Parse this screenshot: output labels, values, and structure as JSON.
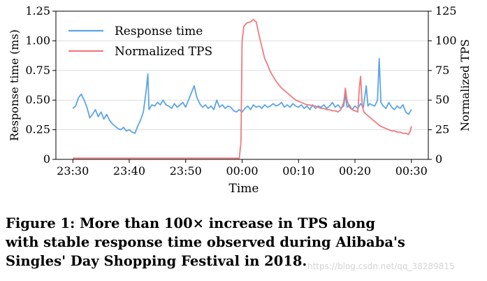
{
  "chart_data": {
    "type": "line",
    "xlabel": "Time",
    "ylabel_left": "Response time (ms)",
    "ylabel_right": "Normalized TPS",
    "x_tick_labels": [
      "23:30",
      "23:40",
      "23:50",
      "00:00",
      "00:10",
      "00:20",
      "00:30"
    ],
    "x_tick_minutes": [
      -30,
      -20,
      -10,
      0,
      10,
      20,
      30
    ],
    "xlim": [
      -33,
      33
    ],
    "ylim_left": [
      0,
      1.25
    ],
    "ylim_right": [
      0,
      125
    ],
    "y_left_ticks": [
      "0",
      "0.25",
      "0.50",
      "0.75",
      "1.00",
      "1.25"
    ],
    "y_right_ticks": [
      "0",
      "25",
      "50",
      "75",
      "100",
      "125"
    ],
    "grid": true,
    "legend_position": "upper-left",
    "series": [
      {
        "name": "Response time",
        "axis": "left",
        "color": "#5aa5e8",
        "points": [
          [
            -30,
            0.43
          ],
          [
            -29.5,
            0.45
          ],
          [
            -29,
            0.52
          ],
          [
            -28.5,
            0.55
          ],
          [
            -28,
            0.5
          ],
          [
            -27.5,
            0.44
          ],
          [
            -27,
            0.35
          ],
          [
            -26.5,
            0.38
          ],
          [
            -26,
            0.42
          ],
          [
            -25.5,
            0.36
          ],
          [
            -25,
            0.4
          ],
          [
            -24.5,
            0.34
          ],
          [
            -24,
            0.38
          ],
          [
            -23.5,
            0.33
          ],
          [
            -23,
            0.3
          ],
          [
            -22.5,
            0.28
          ],
          [
            -22,
            0.26
          ],
          [
            -21.5,
            0.25
          ],
          [
            -21,
            0.27
          ],
          [
            -20.5,
            0.24
          ],
          [
            -20,
            0.25
          ],
          [
            -19.5,
            0.23
          ],
          [
            -19,
            0.22
          ],
          [
            -18.5,
            0.28
          ],
          [
            -18,
            0.33
          ],
          [
            -17.5,
            0.4
          ],
          [
            -17,
            0.58
          ],
          [
            -16.7,
            0.72
          ],
          [
            -16.5,
            0.42
          ],
          [
            -16,
            0.46
          ],
          [
            -15.5,
            0.45
          ],
          [
            -15,
            0.48
          ],
          [
            -14.5,
            0.46
          ],
          [
            -14,
            0.5
          ],
          [
            -13.5,
            0.46
          ],
          [
            -13,
            0.45
          ],
          [
            -12.5,
            0.43
          ],
          [
            -12,
            0.47
          ],
          [
            -11.5,
            0.44
          ],
          [
            -11,
            0.46
          ],
          [
            -10.5,
            0.48
          ],
          [
            -10,
            0.44
          ],
          [
            -9.5,
            0.5
          ],
          [
            -9,
            0.56
          ],
          [
            -8.5,
            0.62
          ],
          [
            -8,
            0.52
          ],
          [
            -7.5,
            0.47
          ],
          [
            -7,
            0.44
          ],
          [
            -6.5,
            0.46
          ],
          [
            -6,
            0.43
          ],
          [
            -5.5,
            0.45
          ],
          [
            -5,
            0.42
          ],
          [
            -4.5,
            0.5
          ],
          [
            -4,
            0.44
          ],
          [
            -3.5,
            0.46
          ],
          [
            -3,
            0.43
          ],
          [
            -2.5,
            0.45
          ],
          [
            -2,
            0.44
          ],
          [
            -1.5,
            0.41
          ],
          [
            -1,
            0.4
          ],
          [
            -0.5,
            0.42
          ],
          [
            0,
            0.4
          ],
          [
            0.5,
            0.43
          ],
          [
            1,
            0.45
          ],
          [
            1.5,
            0.42
          ],
          [
            2,
            0.46
          ],
          [
            2.5,
            0.44
          ],
          [
            3,
            0.45
          ],
          [
            3.5,
            0.43
          ],
          [
            4,
            0.46
          ],
          [
            4.5,
            0.44
          ],
          [
            5,
            0.45
          ],
          [
            5.5,
            0.47
          ],
          [
            6,
            0.45
          ],
          [
            6.5,
            0.46
          ],
          [
            7,
            0.48
          ],
          [
            7.5,
            0.44
          ],
          [
            8,
            0.46
          ],
          [
            8.5,
            0.44
          ],
          [
            9,
            0.47
          ],
          [
            9.5,
            0.45
          ],
          [
            10,
            0.44
          ],
          [
            10.5,
            0.46
          ],
          [
            11,
            0.43
          ],
          [
            11.5,
            0.45
          ],
          [
            12,
            0.42
          ],
          [
            12.5,
            0.46
          ],
          [
            13,
            0.43
          ],
          [
            13.5,
            0.45
          ],
          [
            14,
            0.44
          ],
          [
            14.5,
            0.46
          ],
          [
            15,
            0.43
          ],
          [
            15.5,
            0.45
          ],
          [
            16,
            0.48
          ],
          [
            16.5,
            0.44
          ],
          [
            17,
            0.46
          ],
          [
            17.5,
            0.43
          ],
          [
            18,
            0.45
          ],
          [
            18.3,
            0.55
          ],
          [
            18.6,
            0.44
          ],
          [
            19,
            0.46
          ],
          [
            19.5,
            0.42
          ],
          [
            20,
            0.45
          ],
          [
            20.5,
            0.43
          ],
          [
            21,
            0.47
          ],
          [
            21.5,
            0.44
          ],
          [
            22,
            0.62
          ],
          [
            22.3,
            0.45
          ],
          [
            22.6,
            0.47
          ],
          [
            23,
            0.46
          ],
          [
            23.5,
            0.45
          ],
          [
            24,
            0.5
          ],
          [
            24.3,
            0.85
          ],
          [
            24.6,
            0.48
          ],
          [
            25,
            0.45
          ],
          [
            25.5,
            0.43
          ],
          [
            26,
            0.48
          ],
          [
            26.5,
            0.44
          ],
          [
            27,
            0.42
          ],
          [
            27.5,
            0.45
          ],
          [
            28,
            0.43
          ],
          [
            28.5,
            0.46
          ],
          [
            29,
            0.4
          ],
          [
            29.5,
            0.38
          ],
          [
            30,
            0.42
          ]
        ]
      },
      {
        "name": "Normalized TPS",
        "axis": "right",
        "color": "#f07a7f",
        "points": [
          [
            -30,
            1
          ],
          [
            -10,
            1
          ],
          [
            -1,
            1
          ],
          [
            -0.5,
            1
          ],
          [
            -0.2,
            15
          ],
          [
            0,
            100
          ],
          [
            0.3,
            112
          ],
          [
            0.8,
            115
          ],
          [
            1.5,
            116
          ],
          [
            2,
            118
          ],
          [
            2.5,
            116
          ],
          [
            3,
            105
          ],
          [
            3.5,
            95
          ],
          [
            4,
            85
          ],
          [
            4.5,
            80
          ],
          [
            5,
            74
          ],
          [
            5.5,
            70
          ],
          [
            6,
            66
          ],
          [
            6.5,
            63
          ],
          [
            7,
            60
          ],
          [
            7.5,
            58
          ],
          [
            8,
            56
          ],
          [
            8.5,
            54
          ],
          [
            9,
            52
          ],
          [
            9.5,
            50
          ],
          [
            10,
            49
          ],
          [
            10.5,
            48
          ],
          [
            11,
            47
          ],
          [
            11.5,
            46
          ],
          [
            12,
            46
          ],
          [
            12.5,
            45
          ],
          [
            13,
            45
          ],
          [
            13.5,
            44
          ],
          [
            14,
            43
          ],
          [
            14.5,
            43
          ],
          [
            15,
            42
          ],
          [
            15.5,
            42
          ],
          [
            16,
            41
          ],
          [
            16.5,
            41
          ],
          [
            17,
            40
          ],
          [
            17.5,
            42
          ],
          [
            18,
            48
          ],
          [
            18.3,
            60
          ],
          [
            18.6,
            50
          ],
          [
            19,
            44
          ],
          [
            19.5,
            42
          ],
          [
            20,
            41
          ],
          [
            20.5,
            40
          ],
          [
            20.8,
            62
          ],
          [
            21,
            70
          ],
          [
            21.3,
            45
          ],
          [
            21.6,
            40
          ],
          [
            22,
            38
          ],
          [
            22.5,
            36
          ],
          [
            23,
            34
          ],
          [
            23.5,
            32
          ],
          [
            24,
            30
          ],
          [
            24.5,
            28
          ],
          [
            25,
            27
          ],
          [
            25.5,
            26
          ],
          [
            26,
            25
          ],
          [
            26.5,
            24
          ],
          [
            27,
            24
          ],
          [
            27.5,
            23
          ],
          [
            28,
            23
          ],
          [
            28.5,
            22
          ],
          [
            29,
            22
          ],
          [
            29.5,
            21
          ],
          [
            29.8,
            24
          ],
          [
            30,
            28
          ]
        ]
      }
    ]
  },
  "caption": {
    "line1": "Figure 1: More than 100× increase in TPS along",
    "line2": "with stable response time observed during Alibaba's",
    "line3": "Singles' Day Shopping Festival in 2018."
  },
  "watermark": "https://blog.csdn.net/qq_38289815"
}
